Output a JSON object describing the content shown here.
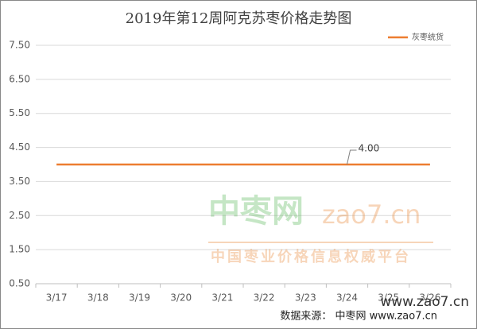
{
  "chart_data": {
    "type": "line",
    "title": "2019年第12周阿克苏枣价格走势图",
    "categories": [
      "3/17",
      "3/18",
      "3/19",
      "3/20",
      "3/21",
      "3/22",
      "3/23",
      "3/24",
      "3/25",
      "3/26"
    ],
    "series": [
      {
        "name": "灰枣统货",
        "color": "#ed7d31",
        "values": [
          4,
          4,
          4,
          4,
          4,
          4,
          4,
          4,
          4,
          4
        ],
        "value_labels": [
          null,
          null,
          null,
          null,
          null,
          null,
          null,
          "4.00",
          null,
          null
        ]
      }
    ],
    "ylim": [
      0.5,
      7.5
    ],
    "yticks": [
      {
        "value": 0.5,
        "label": "0.50"
      },
      {
        "value": 1.5,
        "label": "1.50"
      },
      {
        "value": 2.5,
        "label": "2.50"
      },
      {
        "value": 3.5,
        "label": "3.50"
      },
      {
        "value": 4.5,
        "label": "4.50"
      },
      {
        "value": 5.5,
        "label": "5.50"
      },
      {
        "value": 6.5,
        "label": "6.50"
      },
      {
        "value": 7.5,
        "label": "7.50"
      }
    ],
    "grid": true,
    "legend": "top-right",
    "watermark": [
      "中枣网",
      "zao7.cn",
      "中国枣业价格信息权威平台",
      "www.zao7.cn"
    ],
    "source": "数据来源： 中枣网 www.zao7.cn"
  }
}
